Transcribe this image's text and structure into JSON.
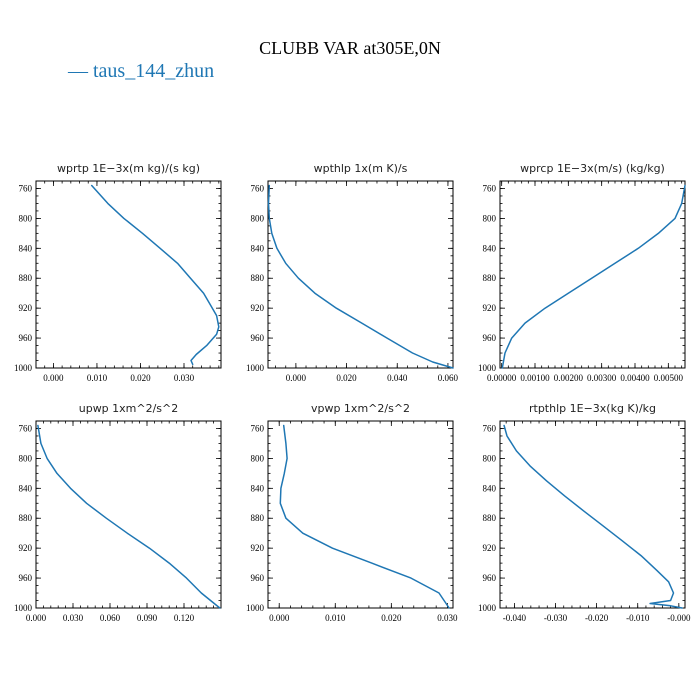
{
  "figure": {
    "title": "CLUBB VAR at305E,0N",
    "legend_label": "taus_144_zhun",
    "line_color": "#1f77b4"
  },
  "chart_data": [
    {
      "type": "line",
      "title": "wprtp  1E−3x(m kg)/(s kg)",
      "xlim": [
        -0.004,
        0.0385
      ],
      "ylim": [
        1000,
        750
      ],
      "xticks": [
        "0.000",
        "0.010",
        "0.020",
        "0.030"
      ],
      "xtick_values": [
        0.0,
        0.01,
        0.02,
        0.03
      ],
      "yticks": [
        "760",
        "800",
        "840",
        "880",
        "920",
        "960",
        "1000"
      ],
      "ytick_values": [
        760,
        800,
        840,
        880,
        920,
        960,
        1000
      ],
      "series": [
        {
          "x": [
            0.0088,
            0.0125,
            0.0162,
            0.0205,
            0.0245,
            0.0285,
            0.0315,
            0.0345,
            0.036,
            0.0375,
            0.038,
            0.0375,
            0.0352,
            0.0328,
            0.0316,
            0.032
          ],
          "y": [
            756,
            780,
            800,
            820,
            840,
            860,
            880,
            900,
            915,
            930,
            945,
            955,
            970,
            982,
            990,
            995
          ]
        }
      ]
    },
    {
      "type": "line",
      "title": "wpthlp  1x(m K)/s",
      "xlim": [
        -0.011,
        0.062
      ],
      "ylim": [
        1000,
        750
      ],
      "xticks": [
        "0.000",
        "0.020",
        "0.040",
        "0.060"
      ],
      "xtick_values": [
        0.0,
        0.02,
        0.04,
        0.06
      ],
      "yticks": [
        "760",
        "800",
        "840",
        "880",
        "920",
        "960",
        "1000"
      ],
      "ytick_values": [
        760,
        800,
        840,
        880,
        920,
        960,
        1000
      ],
      "series": [
        {
          "x": [
            -0.0105,
            -0.0108,
            -0.0105,
            -0.0095,
            -0.0075,
            -0.004,
            0.001,
            0.0075,
            0.016,
            0.026,
            0.036,
            0.046,
            0.054,
            0.062
          ],
          "y": [
            756,
            780,
            800,
            820,
            840,
            860,
            880,
            900,
            920,
            940,
            960,
            980,
            992,
            1000
          ]
        }
      ]
    },
    {
      "type": "line",
      "title": "wprcp  1E−3x(m/s) (kg/kg)",
      "xlim": [
        -5e-05,
        0.0055
      ],
      "ylim": [
        1000,
        750
      ],
      "xticks": [
        "0.00000",
        "0.00100",
        "0.00200",
        "0.00300",
        "0.00400",
        "0.00500"
      ],
      "xtick_values": [
        0.0,
        0.001,
        0.002,
        0.003,
        0.004,
        0.005
      ],
      "yticks": [
        "760",
        "800",
        "840",
        "880",
        "920",
        "960",
        "1000"
      ],
      "ytick_values": [
        760,
        800,
        840,
        880,
        920,
        960,
        1000
      ],
      "series": [
        {
          "x": [
            0.0055,
            0.0054,
            0.0052,
            0.0047,
            0.0041,
            0.0034,
            0.0027,
            0.002,
            0.0013,
            0.0007,
            0.0003,
            0.0001,
            2e-05
          ],
          "y": [
            756,
            780,
            800,
            820,
            840,
            860,
            880,
            900,
            920,
            940,
            960,
            980,
            1000
          ]
        }
      ]
    },
    {
      "type": "line",
      "title": "upwp  1xm^2/s^2",
      "xlim": [
        0.0,
        0.15
      ],
      "ylim": [
        1000,
        750
      ],
      "xticks": [
        "0.000",
        "0.030",
        "0.060",
        "0.090",
        "0.120"
      ],
      "xtick_values": [
        0.0,
        0.03,
        0.06,
        0.09,
        0.12
      ],
      "yticks": [
        "760",
        "800",
        "840",
        "880",
        "920",
        "960",
        "1000"
      ],
      "ytick_values": [
        760,
        800,
        840,
        880,
        920,
        960,
        1000
      ],
      "series": [
        {
          "x": [
            0.0015,
            0.004,
            0.009,
            0.017,
            0.028,
            0.041,
            0.057,
            0.074,
            0.092,
            0.108,
            0.122,
            0.134,
            0.143,
            0.149
          ],
          "y": [
            756,
            780,
            800,
            820,
            840,
            860,
            880,
            900,
            920,
            940,
            960,
            980,
            992,
            1000
          ]
        }
      ]
    },
    {
      "type": "line",
      "title": "vpwp  1xm^2/s^2",
      "xlim": [
        -0.002,
        0.031
      ],
      "ylim": [
        1000,
        750
      ],
      "xticks": [
        "0.000",
        "0.010",
        "0.020",
        "0.030"
      ],
      "xtick_values": [
        0.0,
        0.01,
        0.02,
        0.03
      ],
      "yticks": [
        "760",
        "800",
        "840",
        "880",
        "920",
        "960",
        "1000"
      ],
      "ytick_values": [
        760,
        800,
        840,
        880,
        920,
        960,
        1000
      ],
      "series": [
        {
          "x": [
            0.0008,
            0.0012,
            0.0014,
            0.0009,
            0.0003,
            0.0002,
            0.0012,
            0.0042,
            0.0095,
            0.0165,
            0.0235,
            0.0285,
            0.0303
          ],
          "y": [
            756,
            780,
            800,
            820,
            840,
            860,
            880,
            900,
            920,
            940,
            960,
            980,
            1000
          ]
        }
      ]
    },
    {
      "type": "line",
      "title": "rtpthlp  1E−3x(kg K)/kg",
      "xlim": [
        -0.0435,
        0.0015
      ],
      "ylim": [
        1000,
        750
      ],
      "xticks": [
        "-0.040",
        "-0.030",
        "-0.020",
        "-0.010",
        "-0.000"
      ],
      "xtick_values": [
        -0.04,
        -0.03,
        -0.02,
        -0.01,
        0.0
      ],
      "yticks": [
        "760",
        "800",
        "840",
        "880",
        "920",
        "960",
        "1000"
      ],
      "ytick_values": [
        760,
        800,
        840,
        880,
        920,
        960,
        1000
      ],
      "series": [
        {
          "x": [
            -0.0425,
            -0.0418,
            -0.0395,
            -0.0362,
            -0.0322,
            -0.0278,
            -0.0232,
            -0.0185,
            -0.0138,
            -0.0092,
            -0.0053,
            -0.0025,
            -0.0013,
            -0.002,
            -0.007,
            -0.002,
            0.0008
          ],
          "y": [
            756,
            770,
            790,
            810,
            830,
            850,
            870,
            890,
            910,
            930,
            950,
            965,
            980,
            990,
            994,
            997,
            1000
          ]
        }
      ]
    }
  ]
}
